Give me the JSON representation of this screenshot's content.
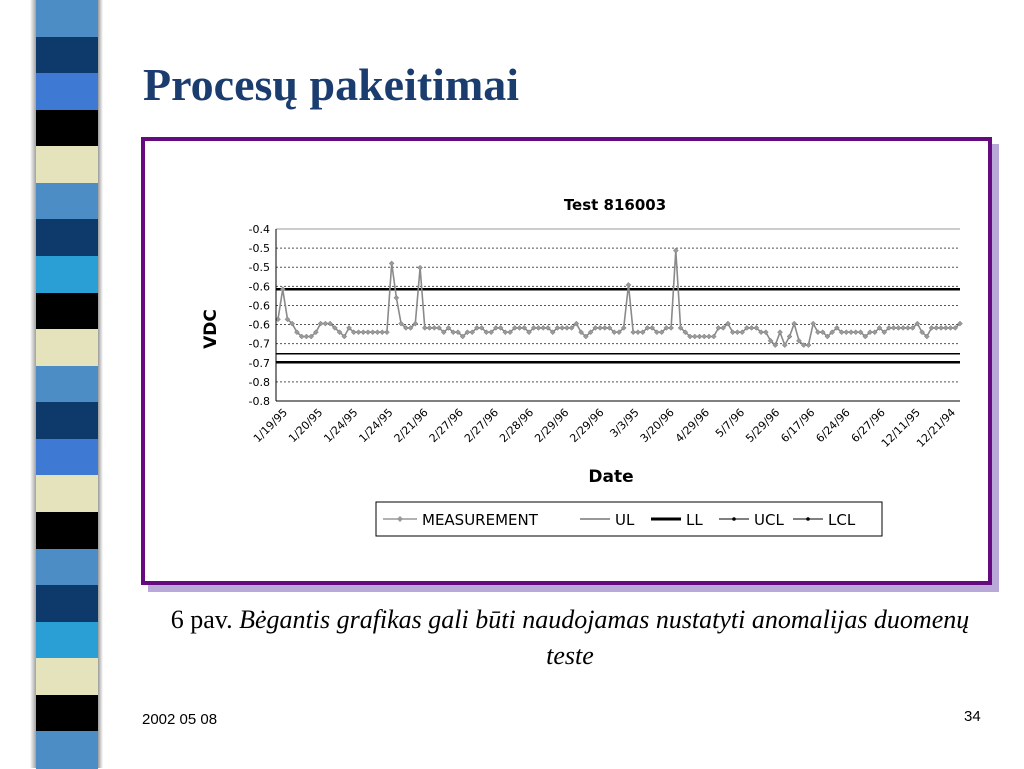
{
  "slide": {
    "title": "Procesų pakeitimai",
    "caption_prefix": "6 pav.",
    "caption_italic": "Bėgantis grafikas gali būti naudojamas nustatyti anomalijas duomenų teste",
    "footer_date": "2002 05 08",
    "page_number": "34"
  },
  "theme": {
    "title_color": "#1a3c6e",
    "frame_color": "#660a80",
    "stripe_colors": [
      "#4b8dc4",
      "#0d3a6b",
      "#3e79d4",
      "#000000",
      "#e5e3bc",
      "#4b8dc4",
      "#0d3a6b",
      "#2a9fd6",
      "#000000",
      "#e5e3bc",
      "#4b8dc4",
      "#0d3a6b",
      "#3e79d4",
      "#e5e3bc",
      "#000000",
      "#4b8dc4",
      "#0d3a6b",
      "#2a9fd6",
      "#e5e3bc",
      "#000000",
      "#4b8dc4"
    ]
  },
  "chart_data": {
    "type": "line",
    "title": "Test 816003",
    "xlabel": "Date",
    "ylabel": "VDC",
    "y_tick_labels": [
      "-0.4",
      "-0.5",
      "-0.5",
      "-0.6",
      "-0.6",
      "-0.6",
      "-0.7",
      "-0.7",
      "-0.8",
      "-0.8"
    ],
    "ylim": [
      -0.8,
      -0.4
    ],
    "x_tick_labels": [
      "1/19/95",
      "1/20/95",
      "1/24/95",
      "1/24/95",
      "2/21/96",
      "2/27/96",
      "2/27/96",
      "2/28/96",
      "2/29/96",
      "2/29/96",
      "3/3/95",
      "3/20/96",
      "4/29/96",
      "5/7/96",
      "5/29/96",
      "6/17/96",
      "6/24/96",
      "6/27/96",
      "12/11/95",
      "12/21/94"
    ],
    "grid": "horizontal dashed",
    "legend_position": "bottom",
    "legend": [
      "MEASUREMENT",
      "UL",
      "LL",
      "UCL",
      "LCL"
    ],
    "series": [
      {
        "name": "MEASUREMENT",
        "color": "#999999",
        "values": [
          -0.61,
          -0.54,
          -0.61,
          -0.62,
          -0.64,
          -0.65,
          -0.65,
          -0.65,
          -0.64,
          -0.62,
          -0.62,
          -0.62,
          -0.63,
          -0.64,
          -0.65,
          -0.63,
          -0.64,
          -0.64,
          -0.64,
          -0.64,
          -0.64,
          -0.64,
          -0.64,
          -0.64,
          -0.48,
          -0.56,
          -0.62,
          -0.63,
          -0.63,
          -0.62,
          -0.49,
          -0.63,
          -0.63,
          -0.63,
          -0.63,
          -0.64,
          -0.63,
          -0.64,
          -0.64,
          -0.65,
          -0.64,
          -0.64,
          -0.63,
          -0.63,
          -0.64,
          -0.64,
          -0.63,
          -0.63,
          -0.64,
          -0.64,
          -0.63,
          -0.63,
          -0.63,
          -0.64,
          -0.63,
          -0.63,
          -0.63,
          -0.63,
          -0.64,
          -0.63,
          -0.63,
          -0.63,
          -0.63,
          -0.62,
          -0.64,
          -0.65,
          -0.64,
          -0.63,
          -0.63,
          -0.63,
          -0.63,
          -0.64,
          -0.64,
          -0.63,
          -0.53,
          -0.64,
          -0.64,
          -0.64,
          -0.63,
          -0.63,
          -0.64,
          -0.64,
          -0.63,
          -0.63,
          -0.45,
          -0.63,
          -0.64,
          -0.65,
          -0.65,
          -0.65,
          -0.65,
          -0.65,
          -0.65,
          -0.63,
          -0.63,
          -0.62,
          -0.64,
          -0.64,
          -0.64,
          -0.63,
          -0.63,
          -0.63,
          -0.64,
          -0.64,
          -0.66,
          -0.67,
          -0.64,
          -0.67,
          -0.65,
          -0.62,
          -0.66,
          -0.67,
          -0.67,
          -0.62,
          -0.64,
          -0.64,
          -0.65,
          -0.64,
          -0.63,
          -0.64,
          -0.64,
          -0.64,
          -0.64,
          -0.64,
          -0.65,
          -0.64,
          -0.64,
          -0.63,
          -0.64,
          -0.63,
          -0.63,
          -0.63,
          -0.63,
          -0.63,
          -0.63,
          -0.62,
          -0.64,
          -0.65,
          -0.63,
          -0.63,
          -0.63,
          -0.63,
          -0.63,
          -0.63,
          -0.62
        ]
      },
      {
        "name": "UL",
        "color": "#999999",
        "values": [
          -0.4,
          -0.4
        ]
      },
      {
        "name": "LL",
        "color": "#000000",
        "values": [
          -0.54,
          -0.54
        ]
      },
      {
        "name": "UCL",
        "color": "#000000",
        "values": [
          -0.69,
          -0.69
        ]
      },
      {
        "name": "LCL",
        "color": "#000000",
        "values": [
          -0.71,
          -0.71
        ]
      }
    ]
  }
}
